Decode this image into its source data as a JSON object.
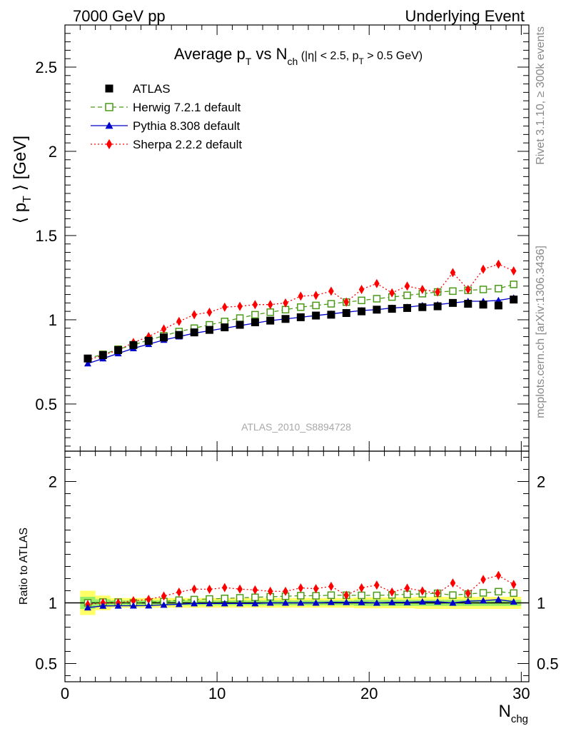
{
  "header": {
    "left": "7000 GeV pp",
    "right": "Underlying Event"
  },
  "side_labels": {
    "rivet": "Rivet 3.1.10, ≥ 300k events",
    "mcplots": "mcplots.cern.ch [arXiv:1306.3436]"
  },
  "watermark": "ATLAS_2010_S8894728",
  "title": {
    "main": "Average p",
    "main_sub": "T",
    "vs": " vs N",
    "vs_sub": "ch",
    "cut": " (|η| < 2.5, p",
    "cut_sub": "T",
    "cut_tail": " > 0.5 GeV)"
  },
  "y_label": {
    "pre": "⟨ p",
    "sub": "T",
    "post": " ⟩ [GeV]"
  },
  "ratio_label": "Ratio to ATLAS",
  "x_label": {
    "main": "N",
    "sub": "chg"
  },
  "colors": {
    "atlas": "#000000",
    "herwig": "#4a9a16",
    "pythia": "#0000cc",
    "sherpa": "#ff0000",
    "band_outer": "#ffff66",
    "band_inner": "#99ee66"
  },
  "chart_data": {
    "type": "line",
    "x": [
      1.5,
      2.5,
      3.5,
      4.5,
      5.5,
      6.5,
      7.5,
      8.5,
      9.5,
      10.5,
      11.5,
      12.5,
      13.5,
      14.5,
      15.5,
      16.5,
      17.5,
      18.5,
      19.5,
      20.5,
      21.5,
      22.5,
      23.5,
      24.5,
      25.5,
      26.5,
      27.5,
      28.5,
      29.5
    ],
    "xlim": [
      0,
      30.5
    ],
    "main_ylim": [
      0.22,
      2.75
    ],
    "ratio_ylim": [
      0.35,
      2.25
    ],
    "x_ticks": [
      "0",
      "10",
      "20",
      "30"
    ],
    "main_y_ticks": [
      "0.5",
      "1",
      "1.5",
      "2",
      "2.5"
    ],
    "ratio_y_ticks": [
      "0.5",
      "1",
      "2"
    ],
    "legend_position": "top-left",
    "series": [
      {
        "name": "ATLAS",
        "marker": "filled-square",
        "values": [
          0.77,
          0.79,
          0.82,
          0.85,
          0.875,
          0.895,
          0.91,
          0.925,
          0.94,
          0.955,
          0.97,
          0.985,
          0.995,
          1.005,
          1.015,
          1.025,
          1.03,
          1.04,
          1.05,
          1.06,
          1.065,
          1.07,
          1.075,
          1.08,
          1.1,
          1.095,
          1.09,
          1.085,
          1.12
        ]
      },
      {
        "name": "Herwig 7.2.1 default",
        "marker": "open-square",
        "dash": "dashed",
        "values": [
          0.77,
          0.795,
          0.825,
          0.85,
          0.88,
          0.905,
          0.93,
          0.95,
          0.97,
          0.99,
          1.01,
          1.03,
          1.045,
          1.06,
          1.075,
          1.085,
          1.095,
          1.105,
          1.115,
          1.125,
          1.135,
          1.145,
          1.155,
          1.165,
          1.17,
          1.175,
          1.18,
          1.185,
          1.21
        ]
      },
      {
        "name": "Pythia 8.308 default",
        "marker": "filled-triangle",
        "dash": "solid",
        "values": [
          0.74,
          0.77,
          0.8,
          0.83,
          0.855,
          0.88,
          0.9,
          0.92,
          0.935,
          0.95,
          0.965,
          0.98,
          0.995,
          1.005,
          1.015,
          1.025,
          1.035,
          1.045,
          1.055,
          1.06,
          1.07,
          1.075,
          1.085,
          1.09,
          1.1,
          1.11,
          1.11,
          1.115,
          1.13
        ]
      },
      {
        "name": "Sherpa 2.2.2 default",
        "marker": "filled-diamond",
        "dash": "dotted",
        "values": [
          0.76,
          0.79,
          0.82,
          0.865,
          0.9,
          0.945,
          0.99,
          1.03,
          1.045,
          1.075,
          1.08,
          1.09,
          1.09,
          1.1,
          1.14,
          1.145,
          1.17,
          1.105,
          1.18,
          1.215,
          1.16,
          1.2,
          1.18,
          1.165,
          1.28,
          1.18,
          1.3,
          1.33,
          1.29
        ]
      }
    ],
    "ratio_band_outer": [
      0.1,
      0.06,
      0.04,
      0.04,
      0.04,
      0.04,
      0.04,
      0.04,
      0.04,
      0.04,
      0.04,
      0.04,
      0.04,
      0.04,
      0.04,
      0.04,
      0.04,
      0.04,
      0.045,
      0.045,
      0.045,
      0.045,
      0.05,
      0.05,
      0.05,
      0.05,
      0.05,
      0.05,
      0.05
    ],
    "ratio_band_inner": [
      0.05,
      0.03,
      0.02,
      0.02,
      0.02,
      0.02,
      0.02,
      0.02,
      0.02,
      0.02,
      0.02,
      0.02,
      0.02,
      0.02,
      0.02,
      0.02,
      0.02,
      0.02,
      0.025,
      0.025,
      0.025,
      0.025,
      0.025,
      0.025,
      0.025,
      0.025,
      0.025,
      0.025,
      0.025
    ]
  }
}
